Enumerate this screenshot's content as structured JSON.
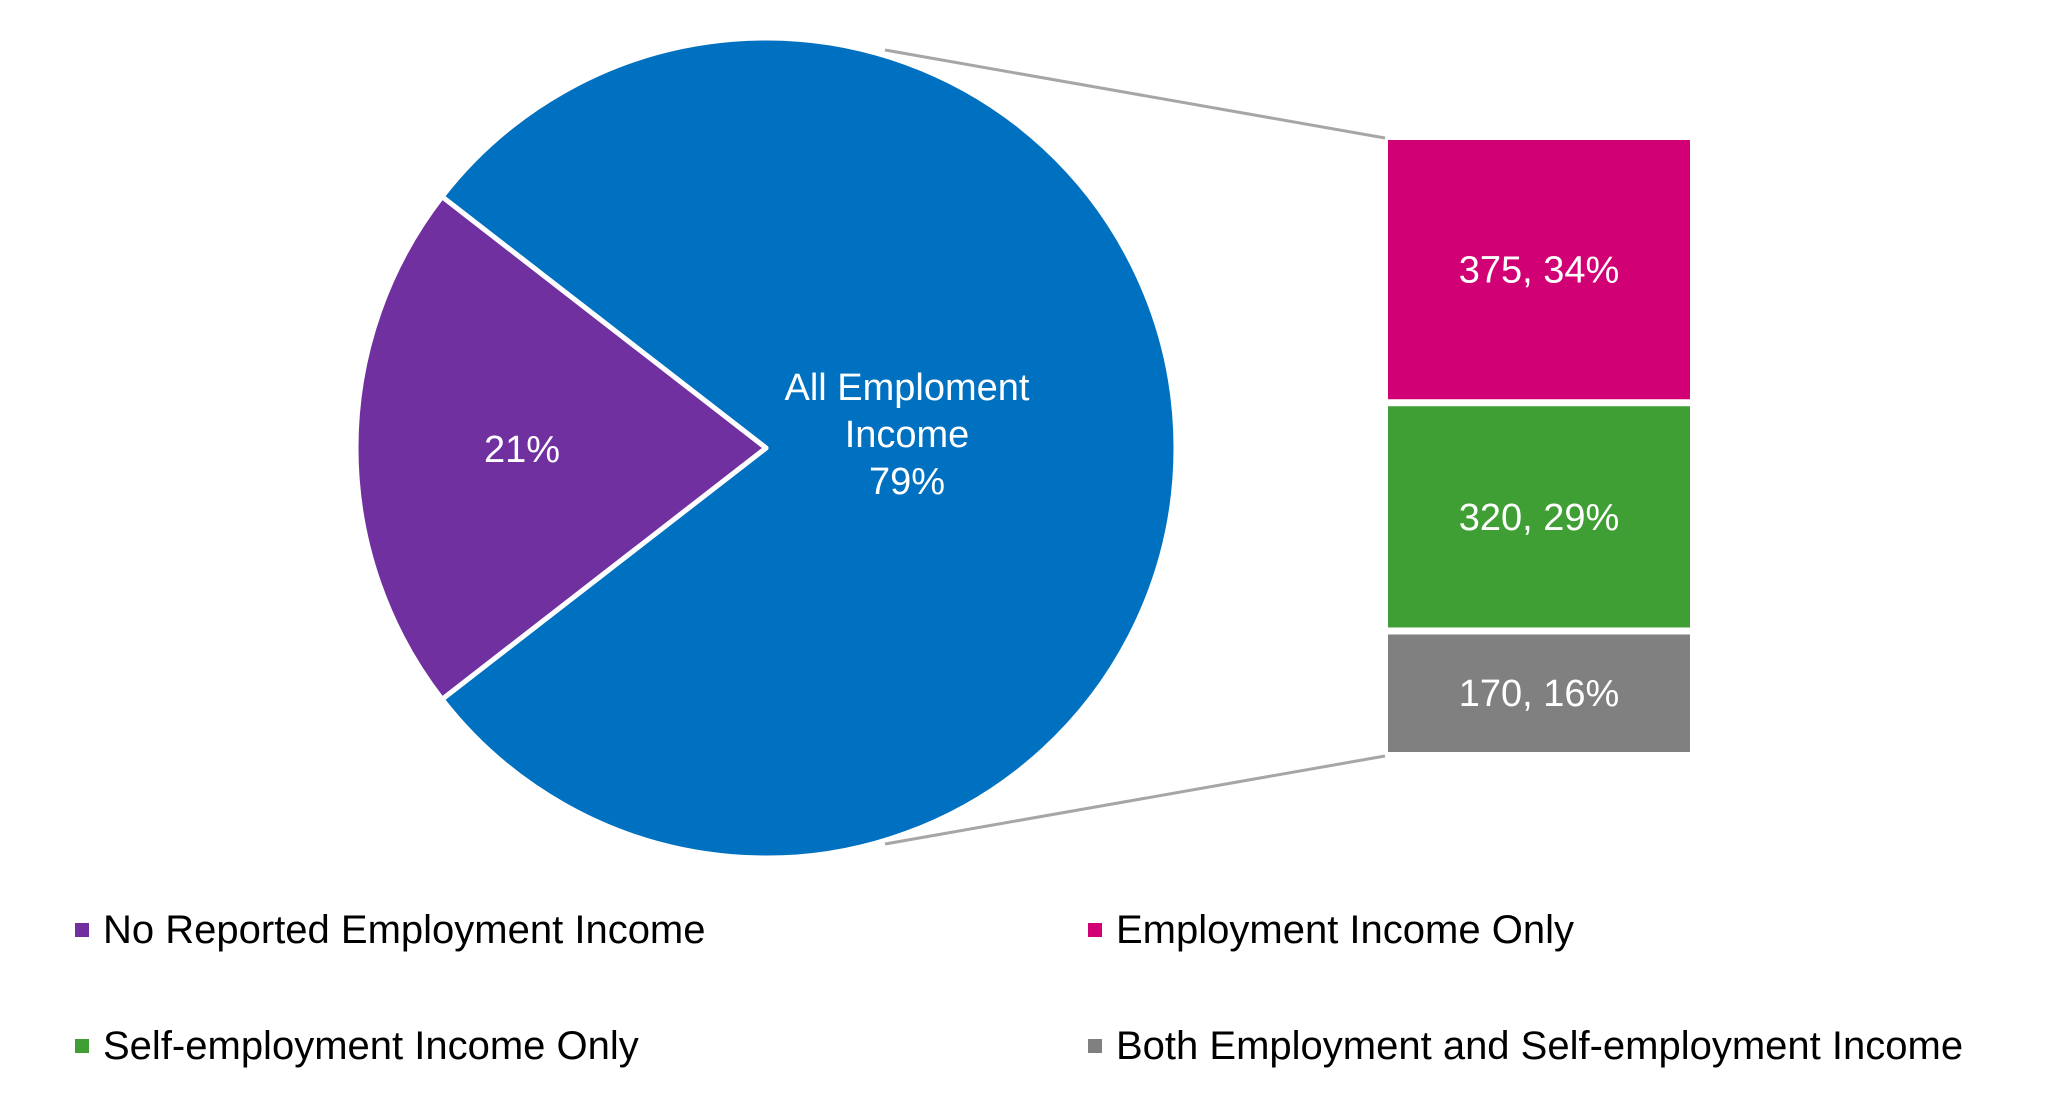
{
  "chart_data": {
    "type": "bar-of-pie",
    "pie": {
      "slices": [
        {
          "label": "All Emploment Income",
          "percent": 79,
          "display": "All Emploment|Income|79%",
          "color": "#0070C0"
        },
        {
          "label": "No Reported Employment Income",
          "percent": 21,
          "display": "21%",
          "color": "#7030A0"
        }
      ]
    },
    "bar": {
      "segments": [
        {
          "label": "Employment Income Only",
          "value": 375,
          "percent": 34,
          "display": "375, 34%",
          "color": "#D10074"
        },
        {
          "label": "Self-employment Income Only",
          "value": 320,
          "percent": 29,
          "display": "320, 29%",
          "color": "#3F9E34"
        },
        {
          "label": "Both Employment and Self-employment Income",
          "value": 170,
          "percent": 16,
          "display": "170, 16%",
          "color": "#808080"
        }
      ]
    },
    "legend": {
      "placement": "bottom",
      "items": [
        {
          "label": "No Reported Employment Income",
          "color": "#7030A0"
        },
        {
          "label": "Employment Income Only",
          "color": "#D10074"
        },
        {
          "label": "Self-employment Income Only",
          "color": "#3F9E34"
        },
        {
          "label": "Both Employment and Self-employment Income",
          "color": "#808080"
        }
      ]
    }
  }
}
